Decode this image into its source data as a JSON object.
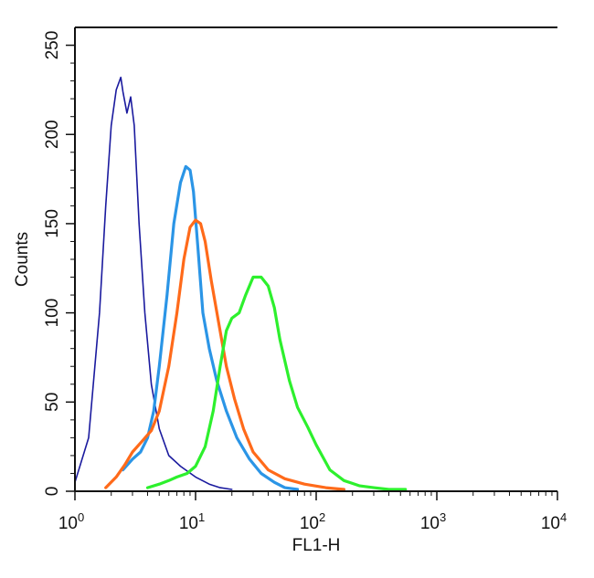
{
  "chart_data": {
    "type": "line",
    "title": "",
    "xlabel": "FL1-H",
    "ylabel": "Counts",
    "xscale": "log",
    "xlim": [
      1,
      10000
    ],
    "ylim": [
      0,
      260
    ],
    "x_ticks": [
      {
        "value": 1,
        "base": "10",
        "exp": "0"
      },
      {
        "value": 10,
        "base": "10",
        "exp": "1"
      },
      {
        "value": 100,
        "base": "10",
        "exp": "2"
      },
      {
        "value": 1000,
        "base": "10",
        "exp": "3"
      },
      {
        "value": 10000,
        "base": "10",
        "exp": "4"
      }
    ],
    "y_ticks": [
      0,
      50,
      100,
      150,
      200,
      250
    ],
    "grid": false,
    "legend": "none",
    "series": [
      {
        "color": "#1a1a9e",
        "x": [
          1.0,
          1.3,
          1.6,
          1.8,
          2.0,
          2.2,
          2.4,
          2.5,
          2.7,
          2.9,
          3.1,
          3.4,
          3.8,
          4.3,
          5.0,
          6.0,
          7.5,
          10,
          13,
          16,
          20
        ],
        "y": [
          5,
          30,
          100,
          160,
          205,
          225,
          232,
          224,
          212,
          221,
          205,
          150,
          100,
          60,
          35,
          20,
          14,
          8,
          4,
          2,
          1
        ]
      },
      {
        "color": "#2b95e6",
        "x": [
          2.5,
          3.0,
          3.5,
          4.0,
          4.5,
          5.0,
          5.8,
          6.6,
          7.5,
          8.3,
          9.0,
          9.6,
          10.5,
          11.5,
          13,
          15,
          18,
          22,
          28,
          35,
          45,
          55,
          70
        ],
        "y": [
          12,
          18,
          22,
          30,
          45,
          70,
          110,
          150,
          173,
          182,
          180,
          168,
          135,
          100,
          80,
          62,
          45,
          30,
          18,
          10,
          5,
          2,
          1
        ]
      },
      {
        "color": "#ff6a1a",
        "x": [
          1.8,
          2.2,
          2.6,
          3.0,
          3.6,
          4.3,
          5.0,
          6.0,
          7.0,
          8.0,
          9.0,
          10.0,
          11.0,
          12.0,
          13.5,
          15.5,
          18,
          21,
          25,
          30,
          40,
          55,
          80,
          120,
          170
        ],
        "y": [
          2,
          8,
          15,
          22,
          28,
          34,
          45,
          70,
          100,
          130,
          148,
          152,
          150,
          140,
          118,
          95,
          70,
          52,
          35,
          22,
          12,
          7,
          4,
          2,
          1
        ]
      },
      {
        "color": "#2df02d",
        "x": [
          4,
          5,
          6,
          7,
          8.5,
          10,
          12,
          14,
          16,
          18,
          20,
          23,
          26,
          30,
          35,
          40,
          45,
          50,
          60,
          70,
          85,
          100,
          130,
          170,
          230,
          300,
          400,
          550
        ],
        "y": [
          2,
          4,
          6,
          8,
          10,
          14,
          25,
          45,
          70,
          90,
          97,
          100,
          110,
          120,
          120,
          115,
          103,
          85,
          62,
          47,
          36,
          26,
          12,
          6,
          3,
          2,
          1,
          1
        ]
      }
    ]
  }
}
